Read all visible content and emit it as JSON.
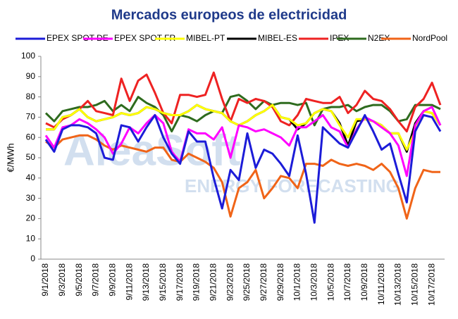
{
  "chart_data": {
    "type": "line",
    "title": "Mercados europeos de electricidad",
    "ylabel": "€/MWh",
    "watermark": [
      "AleaSoft",
      "ENERGY FORECASTING"
    ],
    "categories": [
      "9/1/2018",
      null,
      "9/3/2018",
      null,
      "9/5/2018",
      null,
      "9/7/2018",
      null,
      "9/9/2018",
      null,
      "9/11/2018",
      null,
      "9/13/2018",
      null,
      "9/15/2018",
      null,
      "9/17/2018",
      null,
      "9/19/2018",
      null,
      "9/21/2018",
      null,
      "9/23/2018",
      null,
      "9/25/2018",
      null,
      "9/27/2018",
      null,
      "9/29/2018",
      null,
      "10/1/2018",
      null,
      "10/3/2018",
      null,
      "10/5/2018",
      null,
      "10/7/2018",
      null,
      "10/9/2018",
      null,
      "10/11/2018",
      null,
      "10/13/2018",
      null,
      "10/15/2018",
      null,
      "10/17/2018",
      null
    ],
    "ylim": [
      0,
      100
    ],
    "yticks": [
      0,
      10,
      20,
      30,
      40,
      50,
      60,
      70,
      80,
      90,
      100
    ],
    "grid": false,
    "legend": "top",
    "series": [
      {
        "name": "EPEX SPOT DE",
        "color": "#1c1cd8",
        "values": [
          59,
          53,
          64,
          66,
          66,
          65,
          62,
          50,
          49,
          66,
          65,
          58,
          65,
          71,
          60,
          52,
          47,
          63,
          58,
          58,
          40,
          25,
          44,
          39,
          62,
          45,
          54,
          52,
          47,
          41,
          61,
          42,
          18,
          65,
          61,
          57,
          55,
          63,
          71,
          63,
          54,
          57,
          42,
          28,
          63,
          71,
          70,
          63
        ]
      },
      {
        "name": "EPEX SPOT FR",
        "color": "#ff00ff",
        "values": [
          61,
          55,
          65,
          66,
          69,
          67,
          64,
          60,
          52,
          57,
          65,
          62,
          67,
          71,
          67,
          53,
          48,
          64,
          62,
          62,
          59,
          65,
          50,
          66,
          65,
          63,
          64,
          62,
          60,
          56,
          65,
          65,
          68,
          71,
          65,
          63,
          55,
          64,
          70,
          68,
          65,
          62,
          56,
          41,
          66,
          73,
          75,
          66
        ]
      },
      {
        "name": "MIBEL-PT",
        "color": "#ffff00",
        "values": [
          64,
          64,
          70,
          71,
          74,
          70,
          68,
          69,
          70,
          72,
          71,
          72,
          75,
          74,
          72,
          71,
          71,
          73,
          76,
          74,
          73,
          72,
          68,
          66,
          68,
          71,
          73,
          76,
          70,
          69,
          66,
          67,
          72,
          74,
          73,
          66,
          60,
          69,
          69,
          68,
          66,
          62,
          62,
          54,
          63,
          73,
          72,
          66
        ]
      },
      {
        "name": "MIBEL-ES",
        "color": "#000000",
        "values": [
          64,
          64,
          70,
          71,
          74,
          70,
          68,
          69,
          70,
          72,
          71,
          72,
          75,
          74,
          72,
          71,
          71,
          73,
          76,
          74,
          73,
          72,
          68,
          66,
          68,
          71,
          73,
          76,
          70,
          69,
          64,
          67,
          72,
          74,
          73,
          67,
          56,
          68,
          69,
          68,
          66,
          62,
          62,
          53,
          67,
          73,
          72,
          66
        ]
      },
      {
        "name": "IPEX",
        "color": "#ee2222",
        "values": [
          67,
          65,
          69,
          71,
          74,
          78,
          73,
          72,
          71,
          89,
          78,
          88,
          91,
          82,
          72,
          67,
          81,
          81,
          80,
          81,
          92,
          79,
          68,
          79,
          77,
          79,
          78,
          75,
          68,
          66,
          71,
          79,
          78,
          77,
          77,
          80,
          72,
          76,
          83,
          79,
          78,
          74,
          68,
          63,
          75,
          79,
          87,
          76
        ]
      },
      {
        "name": "N2EX",
        "color": "#2e6b1e",
        "values": [
          72,
          68,
          73,
          74,
          75,
          75,
          76,
          78,
          73,
          76,
          73,
          80,
          77,
          75,
          71,
          63,
          71,
          70,
          68,
          71,
          73,
          72,
          80,
          81,
          78,
          74,
          78,
          76,
          77,
          77,
          76,
          77,
          66,
          74,
          75,
          75,
          76,
          73,
          75,
          76,
          76,
          73,
          68,
          69,
          76,
          76,
          76,
          74
        ]
      },
      {
        "name": "NordPool",
        "color": "#f06418",
        "values": [
          58,
          55,
          59,
          60,
          61,
          61,
          59,
          56,
          54,
          56,
          55,
          54,
          53,
          55,
          55,
          49,
          48,
          52,
          50,
          48,
          45,
          38,
          21,
          35,
          38,
          44,
          30,
          35,
          41,
          40,
          35,
          47,
          47,
          46,
          49,
          47,
          46,
          47,
          46,
          44,
          47,
          43,
          35,
          20,
          35,
          44,
          43,
          43
        ]
      }
    ]
  }
}
